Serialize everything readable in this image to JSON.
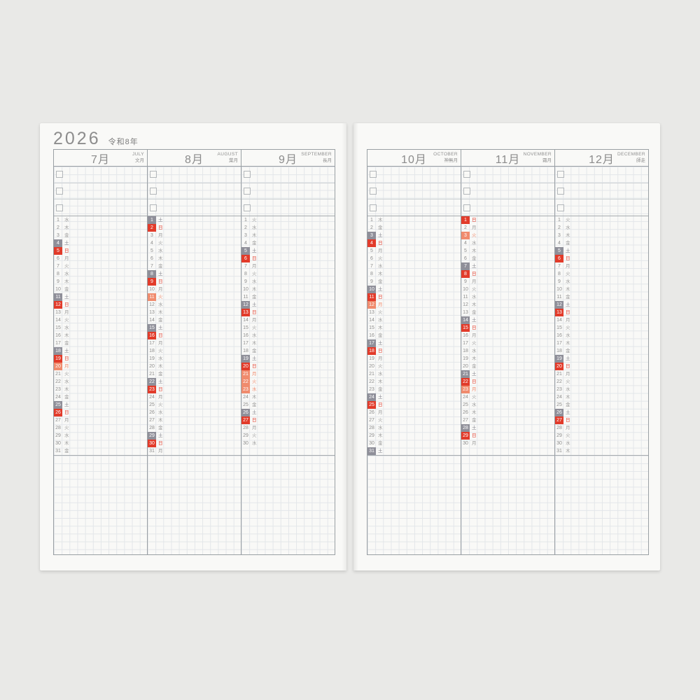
{
  "header": {
    "year": "2026",
    "era": "令和8年"
  },
  "colors": {
    "sat": "#8f8f99",
    "sat_text": "#82828b",
    "sun": "#e23b2a",
    "hol": "#f08b6d",
    "marked_number_text": "#ffffff"
  },
  "months": [
    {
      "name_jp": "7月",
      "name_en": "JULY",
      "name_old": "文月",
      "days": [
        [
          1,
          "水",
          ""
        ],
        [
          2,
          "木",
          ""
        ],
        [
          3,
          "金",
          ""
        ],
        [
          4,
          "土",
          "sat"
        ],
        [
          5,
          "日",
          "sun"
        ],
        [
          6,
          "月",
          ""
        ],
        [
          7,
          "火",
          ""
        ],
        [
          8,
          "水",
          ""
        ],
        [
          9,
          "木",
          ""
        ],
        [
          10,
          "金",
          ""
        ],
        [
          11,
          "土",
          "sat"
        ],
        [
          12,
          "日",
          "sun"
        ],
        [
          13,
          "月",
          ""
        ],
        [
          14,
          "火",
          ""
        ],
        [
          15,
          "水",
          ""
        ],
        [
          16,
          "木",
          ""
        ],
        [
          17,
          "金",
          ""
        ],
        [
          18,
          "土",
          "sat"
        ],
        [
          19,
          "日",
          "sun"
        ],
        [
          20,
          "月",
          "hol"
        ],
        [
          21,
          "火",
          ""
        ],
        [
          22,
          "水",
          ""
        ],
        [
          23,
          "木",
          ""
        ],
        [
          24,
          "金",
          ""
        ],
        [
          25,
          "土",
          "sat"
        ],
        [
          26,
          "日",
          "sun"
        ],
        [
          27,
          "月",
          ""
        ],
        [
          28,
          "火",
          ""
        ],
        [
          29,
          "水",
          ""
        ],
        [
          30,
          "木",
          ""
        ],
        [
          31,
          "金",
          ""
        ]
      ]
    },
    {
      "name_jp": "8月",
      "name_en": "AUGUST",
      "name_old": "葉月",
      "days": [
        [
          1,
          "土",
          "sat"
        ],
        [
          2,
          "日",
          "sun"
        ],
        [
          3,
          "月",
          ""
        ],
        [
          4,
          "火",
          ""
        ],
        [
          5,
          "水",
          ""
        ],
        [
          6,
          "木",
          ""
        ],
        [
          7,
          "金",
          ""
        ],
        [
          8,
          "土",
          "sat"
        ],
        [
          9,
          "日",
          "sun"
        ],
        [
          10,
          "月",
          ""
        ],
        [
          11,
          "火",
          "hol"
        ],
        [
          12,
          "水",
          ""
        ],
        [
          13,
          "木",
          ""
        ],
        [
          14,
          "金",
          ""
        ],
        [
          15,
          "土",
          "sat"
        ],
        [
          16,
          "日",
          "sun"
        ],
        [
          17,
          "月",
          ""
        ],
        [
          18,
          "火",
          ""
        ],
        [
          19,
          "水",
          ""
        ],
        [
          20,
          "木",
          ""
        ],
        [
          21,
          "金",
          ""
        ],
        [
          22,
          "土",
          "sat"
        ],
        [
          23,
          "日",
          "sun"
        ],
        [
          24,
          "月",
          ""
        ],
        [
          25,
          "火",
          ""
        ],
        [
          26,
          "水",
          ""
        ],
        [
          27,
          "木",
          ""
        ],
        [
          28,
          "金",
          ""
        ],
        [
          29,
          "土",
          "sat"
        ],
        [
          30,
          "日",
          "sun"
        ],
        [
          31,
          "月",
          ""
        ]
      ]
    },
    {
      "name_jp": "9月",
      "name_en": "SEPTEMBER",
      "name_old": "長月",
      "days": [
        [
          1,
          "火",
          ""
        ],
        [
          2,
          "水",
          ""
        ],
        [
          3,
          "木",
          ""
        ],
        [
          4,
          "金",
          ""
        ],
        [
          5,
          "土",
          "sat"
        ],
        [
          6,
          "日",
          "sun"
        ],
        [
          7,
          "月",
          ""
        ],
        [
          8,
          "火",
          ""
        ],
        [
          9,
          "水",
          ""
        ],
        [
          10,
          "木",
          ""
        ],
        [
          11,
          "金",
          ""
        ],
        [
          12,
          "土",
          "sat"
        ],
        [
          13,
          "日",
          "sun"
        ],
        [
          14,
          "月",
          ""
        ],
        [
          15,
          "火",
          ""
        ],
        [
          16,
          "水",
          ""
        ],
        [
          17,
          "木",
          ""
        ],
        [
          18,
          "金",
          ""
        ],
        [
          19,
          "土",
          "sat"
        ],
        [
          20,
          "日",
          "sun"
        ],
        [
          21,
          "月",
          "hol"
        ],
        [
          22,
          "火",
          "hol"
        ],
        [
          23,
          "水",
          "hol"
        ],
        [
          24,
          "木",
          ""
        ],
        [
          25,
          "金",
          ""
        ],
        [
          26,
          "土",
          "sat"
        ],
        [
          27,
          "日",
          "sun"
        ],
        [
          28,
          "月",
          ""
        ],
        [
          29,
          "火",
          ""
        ],
        [
          30,
          "水",
          ""
        ]
      ]
    },
    {
      "name_jp": "10月",
      "name_en": "OCTOBER",
      "name_old": "神無月",
      "days": [
        [
          1,
          "木",
          ""
        ],
        [
          2,
          "金",
          ""
        ],
        [
          3,
          "土",
          "sat"
        ],
        [
          4,
          "日",
          "sun"
        ],
        [
          5,
          "月",
          ""
        ],
        [
          6,
          "火",
          ""
        ],
        [
          7,
          "水",
          ""
        ],
        [
          8,
          "木",
          ""
        ],
        [
          9,
          "金",
          ""
        ],
        [
          10,
          "土",
          "sat"
        ],
        [
          11,
          "日",
          "sun"
        ],
        [
          12,
          "月",
          "hol"
        ],
        [
          13,
          "火",
          ""
        ],
        [
          14,
          "水",
          ""
        ],
        [
          15,
          "木",
          ""
        ],
        [
          16,
          "金",
          ""
        ],
        [
          17,
          "土",
          "sat"
        ],
        [
          18,
          "日",
          "sun"
        ],
        [
          19,
          "月",
          ""
        ],
        [
          20,
          "火",
          ""
        ],
        [
          21,
          "水",
          ""
        ],
        [
          22,
          "木",
          ""
        ],
        [
          23,
          "金",
          ""
        ],
        [
          24,
          "土",
          "sat"
        ],
        [
          25,
          "日",
          "sun"
        ],
        [
          26,
          "月",
          ""
        ],
        [
          27,
          "火",
          ""
        ],
        [
          28,
          "水",
          ""
        ],
        [
          29,
          "木",
          ""
        ],
        [
          30,
          "金",
          ""
        ],
        [
          31,
          "土",
          "sat"
        ]
      ]
    },
    {
      "name_jp": "11月",
      "name_en": "NOVEMBER",
      "name_old": "霜月",
      "days": [
        [
          1,
          "日",
          "sun"
        ],
        [
          2,
          "月",
          ""
        ],
        [
          3,
          "火",
          "hol"
        ],
        [
          4,
          "水",
          ""
        ],
        [
          5,
          "木",
          ""
        ],
        [
          6,
          "金",
          ""
        ],
        [
          7,
          "土",
          "sat"
        ],
        [
          8,
          "日",
          "sun"
        ],
        [
          9,
          "月",
          ""
        ],
        [
          10,
          "火",
          ""
        ],
        [
          11,
          "水",
          ""
        ],
        [
          12,
          "木",
          ""
        ],
        [
          13,
          "金",
          ""
        ],
        [
          14,
          "土",
          "sat"
        ],
        [
          15,
          "日",
          "sun"
        ],
        [
          16,
          "月",
          ""
        ],
        [
          17,
          "火",
          ""
        ],
        [
          18,
          "水",
          ""
        ],
        [
          19,
          "木",
          ""
        ],
        [
          20,
          "金",
          ""
        ],
        [
          21,
          "土",
          "sat"
        ],
        [
          22,
          "日",
          "sun"
        ],
        [
          23,
          "月",
          "hol"
        ],
        [
          24,
          "火",
          ""
        ],
        [
          25,
          "水",
          ""
        ],
        [
          26,
          "木",
          ""
        ],
        [
          27,
          "金",
          ""
        ],
        [
          28,
          "土",
          "sat"
        ],
        [
          29,
          "日",
          "sun"
        ],
        [
          30,
          "月",
          ""
        ]
      ]
    },
    {
      "name_jp": "12月",
      "name_en": "DECEMBER",
      "name_old": "師走",
      "days": [
        [
          1,
          "火",
          ""
        ],
        [
          2,
          "水",
          ""
        ],
        [
          3,
          "木",
          ""
        ],
        [
          4,
          "金",
          ""
        ],
        [
          5,
          "土",
          "sat"
        ],
        [
          6,
          "日",
          "sun"
        ],
        [
          7,
          "月",
          ""
        ],
        [
          8,
          "火",
          ""
        ],
        [
          9,
          "水",
          ""
        ],
        [
          10,
          "木",
          ""
        ],
        [
          11,
          "金",
          ""
        ],
        [
          12,
          "土",
          "sat"
        ],
        [
          13,
          "日",
          "sun"
        ],
        [
          14,
          "月",
          ""
        ],
        [
          15,
          "火",
          ""
        ],
        [
          16,
          "水",
          ""
        ],
        [
          17,
          "木",
          ""
        ],
        [
          18,
          "金",
          ""
        ],
        [
          19,
          "土",
          "sat"
        ],
        [
          20,
          "日",
          "sun"
        ],
        [
          21,
          "月",
          ""
        ],
        [
          22,
          "火",
          ""
        ],
        [
          23,
          "水",
          ""
        ],
        [
          24,
          "木",
          ""
        ],
        [
          25,
          "金",
          ""
        ],
        [
          26,
          "土",
          "sat"
        ],
        [
          27,
          "日",
          "sun"
        ],
        [
          28,
          "月",
          ""
        ],
        [
          29,
          "火",
          ""
        ],
        [
          30,
          "水",
          ""
        ],
        [
          31,
          "木",
          ""
        ]
      ]
    }
  ]
}
